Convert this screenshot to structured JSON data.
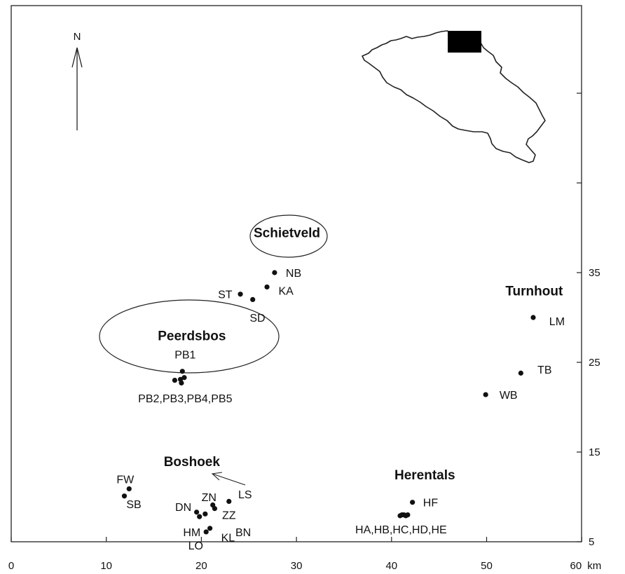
{
  "chart_data": {
    "type": "scatter",
    "xlabel_unit": "km",
    "x_ticks": [
      0,
      10,
      20,
      30,
      40,
      50,
      60
    ],
    "y_ticks": [
      5,
      15,
      25,
      35
    ],
    "xlim": [
      0,
      60
    ],
    "ylim": [
      0,
      58
    ],
    "north_label": "N",
    "regions": [
      {
        "key": "schietveld",
        "label": "Schietveld",
        "x": 29,
        "y": 39.5
      },
      {
        "key": "turnhout",
        "label": "Turnhout",
        "x": 55,
        "y": 33
      },
      {
        "key": "peerdsbos",
        "label": "Peerdsbos",
        "x": 19,
        "y": 28
      },
      {
        "key": "boshoek",
        "label": "Boshoek",
        "x": 19,
        "y": 14
      },
      {
        "key": "herentals",
        "label": "Herentals",
        "x": 43.5,
        "y": 12.5
      }
    ],
    "points": [
      {
        "id": "NB",
        "x": 27.7,
        "y": 35
      },
      {
        "id": "KA",
        "x": 26.9,
        "y": 33.4
      },
      {
        "id": "ST",
        "x": 24.1,
        "y": 32.6
      },
      {
        "id": "SD",
        "x": 25.4,
        "y": 32.0
      },
      {
        "id": "LM",
        "x": 54.9,
        "y": 30.0
      },
      {
        "id": "TB",
        "x": 53.6,
        "y": 23.8
      },
      {
        "id": "WB",
        "x": 49.9,
        "y": 21.4
      },
      {
        "id": "PB1",
        "x": 18.0,
        "y": 24.0
      },
      {
        "id": "PB2",
        "x": 17.2,
        "y": 23.0
      },
      {
        "id": "PB3",
        "x": 17.8,
        "y": 23.1
      },
      {
        "id": "PB4",
        "x": 18.2,
        "y": 23.3
      },
      {
        "id": "PB5",
        "x": 17.9,
        "y": 22.7
      },
      {
        "id": "FW",
        "x": 12.4,
        "y": 10.9
      },
      {
        "id": "SB",
        "x": 11.9,
        "y": 10.1
      },
      {
        "id": "ZN",
        "x": 21.2,
        "y": 9.1
      },
      {
        "id": "LS",
        "x": 22.9,
        "y": 9.5
      },
      {
        "id": "DN",
        "x": 19.5,
        "y": 8.3
      },
      {
        "id": "ZZ",
        "x": 21.4,
        "y": 8.7
      },
      {
        "id": "BN",
        "x": 20.4,
        "y": 8.1
      },
      {
        "id": "HM",
        "x": 19.8,
        "y": 7.8
      },
      {
        "id": "KL",
        "x": 20.9,
        "y": 6.5
      },
      {
        "id": "LO",
        "x": 20.5,
        "y": 6.1
      },
      {
        "id": "HF",
        "x": 42.2,
        "y": 9.4
      },
      {
        "id": "HA",
        "x": 40.9,
        "y": 7.9
      },
      {
        "id": "HB",
        "x": 41.1,
        "y": 8.0
      },
      {
        "id": "HC",
        "x": 41.3,
        "y": 8.0
      },
      {
        "id": "HD",
        "x": 41.5,
        "y": 7.9
      },
      {
        "id": "HE",
        "x": 41.7,
        "y": 8.0
      }
    ],
    "labels": [
      {
        "key": "nb",
        "text": "NB",
        "x": 29.7,
        "y": 35.0
      },
      {
        "key": "ka",
        "text": "KA",
        "x": 28.9,
        "y": 33.0
      },
      {
        "key": "st",
        "text": "ST",
        "x": 22.5,
        "y": 32.6
      },
      {
        "key": "sd",
        "text": "SD",
        "x": 25.9,
        "y": 30.0
      },
      {
        "key": "lm",
        "text": "LM",
        "x": 57.4,
        "y": 29.6
      },
      {
        "key": "tb",
        "text": "TB",
        "x": 56.1,
        "y": 24.2
      },
      {
        "key": "wb",
        "text": "WB",
        "x": 52.3,
        "y": 21.4
      },
      {
        "key": "pb1",
        "text": "PB1",
        "x": 18.3,
        "y": 25.9
      },
      {
        "key": "pbgroup",
        "text": "PB2,PB3,PB4,PB5",
        "x": 18.3,
        "y": 21.0
      },
      {
        "key": "fw",
        "text": "FW",
        "x": 12.0,
        "y": 12.0
      },
      {
        "key": "sb",
        "text": "SB",
        "x": 12.9,
        "y": 9.2
      },
      {
        "key": "zn",
        "text": "ZN",
        "x": 20.8,
        "y": 10.0
      },
      {
        "key": "ls",
        "text": "LS",
        "x": 24.6,
        "y": 10.3
      },
      {
        "key": "dn",
        "text": "DN",
        "x": 18.1,
        "y": 8.9
      },
      {
        "key": "zz",
        "text": "ZZ",
        "x": 22.9,
        "y": 8.0
      },
      {
        "key": "bn",
        "text": "BN",
        "x": 24.4,
        "y": 6.1
      },
      {
        "key": "hm",
        "text": "HM",
        "x": 19.0,
        "y": 6.1
      },
      {
        "key": "kl",
        "text": "KL",
        "x": 22.8,
        "y": 5.5
      },
      {
        "key": "lo",
        "text": "LO",
        "x": 19.4,
        "y": 4.6
      },
      {
        "key": "hf",
        "text": "HF",
        "x": 44.1,
        "y": 9.4
      },
      {
        "key": "hgroup",
        "text": "HA,HB,HC,HD,HE",
        "x": 41.0,
        "y": 6.4
      }
    ]
  }
}
